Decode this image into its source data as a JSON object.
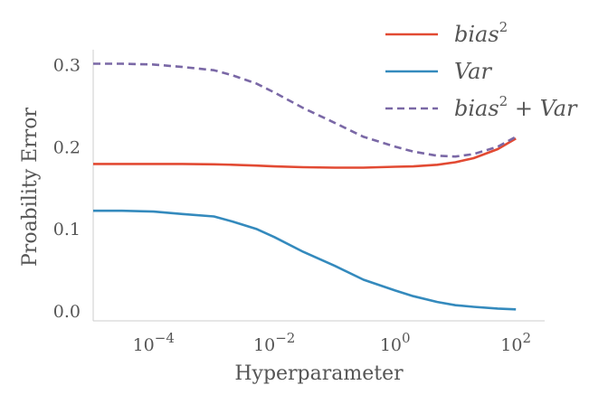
{
  "chart_data": {
    "type": "line",
    "title": "",
    "xlabel": "Hyperparameter",
    "ylabel": "Proability Error",
    "x_scale": "log",
    "xlim": [
      1e-05,
      300
    ],
    "ylim": [
      -0.012,
      0.318
    ],
    "grid": false,
    "legend_placement": "top-right",
    "x_ticks": [
      {
        "value": 0.0001,
        "base": "10",
        "exp": "−4"
      },
      {
        "value": 0.01,
        "base": "10",
        "exp": "−2"
      },
      {
        "value": 1,
        "base": "10",
        "exp": "0"
      },
      {
        "value": 100,
        "base": "10",
        "exp": "2"
      }
    ],
    "y_ticks": [
      {
        "value": 0.0,
        "label": "0.0"
      },
      {
        "value": 0.1,
        "label": "0.1"
      },
      {
        "value": 0.2,
        "label": "0.2"
      },
      {
        "value": 0.3,
        "label": "0.3"
      }
    ],
    "x": [
      1e-05,
      3e-05,
      0.0001,
      0.0003,
      0.001,
      0.002,
      0.005,
      0.01,
      0.03,
      0.1,
      0.3,
      1,
      2,
      5,
      10,
      20,
      50,
      100
    ],
    "series": [
      {
        "key": "bias2",
        "legend": {
          "base": "bias",
          "sup": "2",
          "tail": ""
        },
        "color": "#e24a33",
        "dash": "none",
        "values": [
          0.179,
          0.179,
          0.179,
          0.179,
          0.1785,
          0.178,
          0.177,
          0.176,
          0.175,
          0.1745,
          0.1745,
          0.1755,
          0.176,
          0.178,
          0.181,
          0.186,
          0.197,
          0.21
        ]
      },
      {
        "key": "var",
        "legend": {
          "base": "Var",
          "sup": "",
          "tail": ""
        },
        "color": "#348abd",
        "dash": "none",
        "values": [
          0.122,
          0.122,
          0.121,
          0.118,
          0.115,
          0.109,
          0.1,
          0.09,
          0.072,
          0.055,
          0.038,
          0.025,
          0.018,
          0.011,
          0.007,
          0.005,
          0.003,
          0.002
        ]
      },
      {
        "key": "sum",
        "legend": {
          "base": "bias",
          "sup": "2",
          "tail": " + Var"
        },
        "color": "#7a68a6",
        "dash": "8,5",
        "values": [
          0.301,
          0.301,
          0.3,
          0.297,
          0.293,
          0.287,
          0.277,
          0.266,
          0.247,
          0.229,
          0.212,
          0.2,
          0.194,
          0.189,
          0.188,
          0.191,
          0.2,
          0.212
        ]
      }
    ]
  }
}
